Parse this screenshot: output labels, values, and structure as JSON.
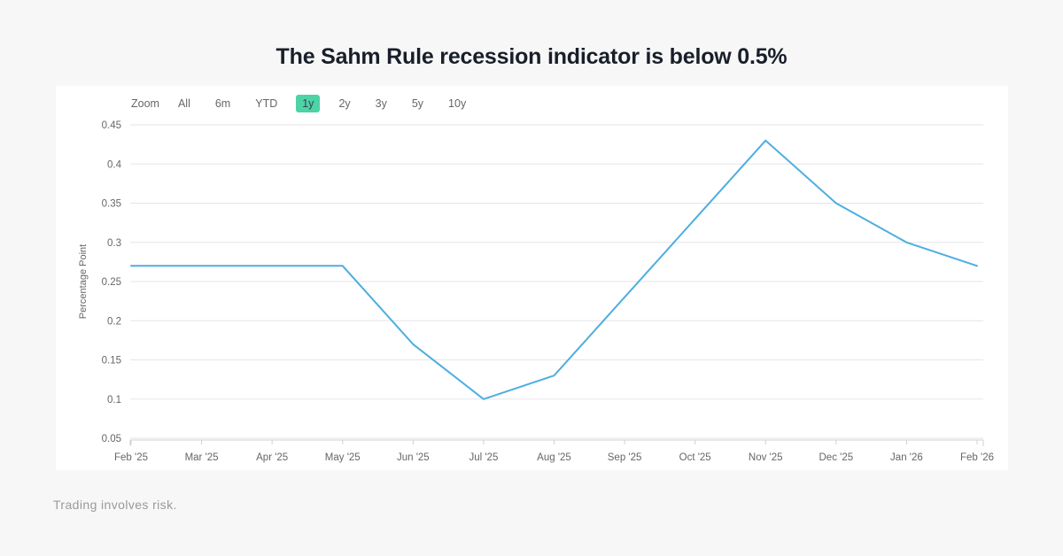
{
  "page": {
    "title": "The Sahm Rule recession indicator is below 0.5%",
    "disclaimer": "Trading involves risk.",
    "background_color": "#f7f7f7",
    "card_color": "#ffffff"
  },
  "toolbar": {
    "zoom_label": "Zoom",
    "buttons": [
      "All",
      "6m",
      "YTD",
      "1y",
      "2y",
      "3y",
      "5y",
      "10y"
    ],
    "active_button": "1y",
    "active_bg_color": "#4cd3a6"
  },
  "chart_data": {
    "type": "line",
    "x": [
      "Feb '25",
      "Mar '25",
      "Apr '25",
      "May '25",
      "Jun '25",
      "Jul '25",
      "Aug '25",
      "Sep '25",
      "Oct '25",
      "Nov '25",
      "Dec '25",
      "Jan '26",
      "Feb '26"
    ],
    "series": [
      {
        "color": "#4daee0",
        "values": [
          0.27,
          0.27,
          0.27,
          0.27,
          0.17,
          0.1,
          0.13,
          0.23,
          0.33,
          0.43,
          0.35,
          0.3,
          0.27
        ]
      }
    ],
    "ylabel": "Percentage Point",
    "xlabel": "",
    "ylim": [
      0.05,
      0.45
    ],
    "yticks": [
      0.05,
      0.1,
      0.15,
      0.2,
      0.25,
      0.3,
      0.35,
      0.4,
      0.45
    ],
    "grid": true,
    "legend": "none",
    "gridline_color": "#e6e6e6",
    "axis_line_color": "#ccd0d6",
    "tick_label_color": "#666666"
  }
}
